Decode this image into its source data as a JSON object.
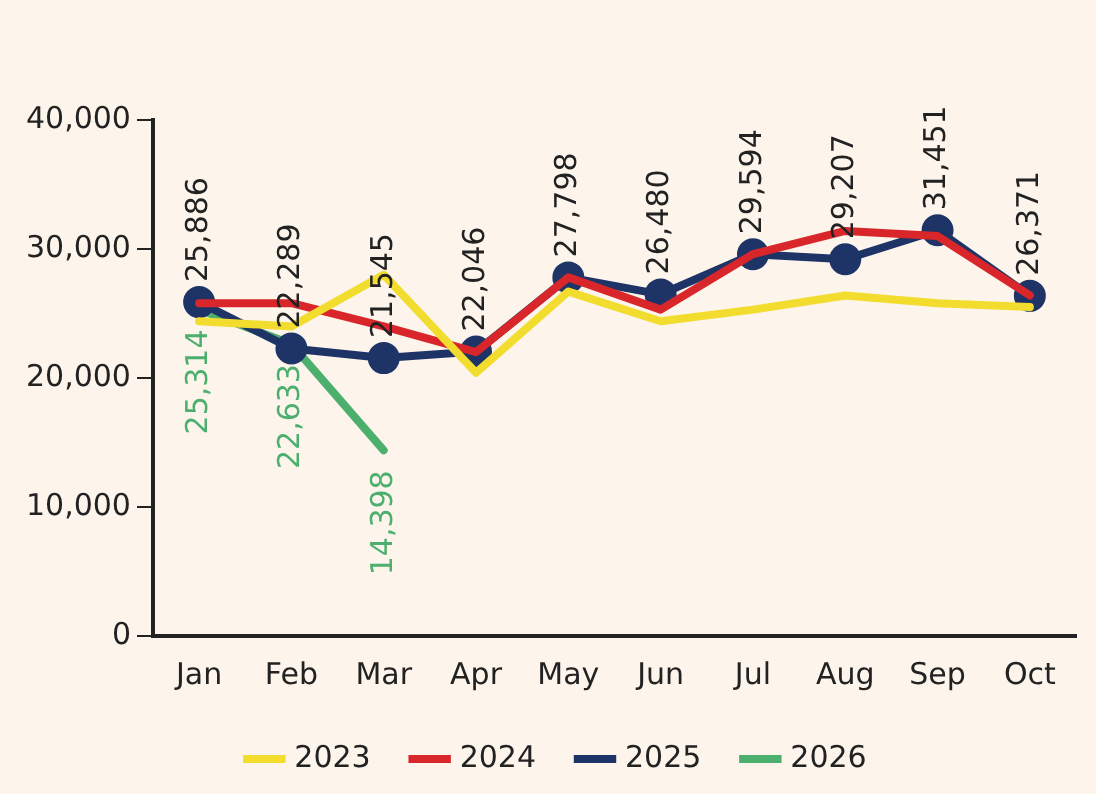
{
  "chart_data": {
    "type": "line",
    "categories": [
      "Jan",
      "Feb",
      "Mar",
      "Apr",
      "May",
      "Jun",
      "Jul",
      "Aug",
      "Sep",
      "Oct"
    ],
    "ylim": [
      0,
      40000
    ],
    "yticks": [
      {
        "value": 0,
        "label": "0"
      },
      {
        "value": 10000,
        "label": "10,000"
      },
      {
        "value": 20000,
        "label": "20,000"
      },
      {
        "value": 30000,
        "label": "30,000"
      },
      {
        "value": 40000,
        "label": "40,000"
      }
    ],
    "grid": false,
    "legend": "bottom",
    "line_style": "solid",
    "series": [
      {
        "name": "2023",
        "color": "#f2dc2e",
        "marker": "none",
        "values": [
          24400,
          24000,
          28000,
          20400,
          26700,
          24400,
          25300,
          26400,
          25800,
          25500
        ]
      },
      {
        "name": "2024",
        "color": "#d9262b",
        "marker": "none",
        "values": [
          25800,
          25800,
          24000,
          22000,
          27800,
          25300,
          29600,
          31400,
          31000,
          26400
        ]
      },
      {
        "name": "2025",
        "color": "#1f3466",
        "marker": "circle",
        "values": [
          25886,
          22289,
          21545,
          22046,
          27798,
          26480,
          29594,
          29207,
          31451,
          26371
        ],
        "value_labels": [
          "25,886",
          "22,289",
          "21,545",
          "22,046",
          "27,798",
          "26,480",
          "29,594",
          "29,207",
          "31,451",
          "26,371"
        ]
      },
      {
        "name": "2026",
        "color": "#4caf6e",
        "marker": "none",
        "values": [
          25314,
          22633,
          14398,
          null,
          null,
          null,
          null,
          null,
          null,
          null
        ],
        "value_labels": [
          "25,314",
          "22,633",
          "14,398",
          null,
          null,
          null,
          null,
          null,
          null,
          null
        ]
      }
    ]
  }
}
